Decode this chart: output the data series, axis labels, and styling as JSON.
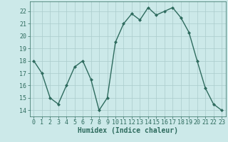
{
  "x": [
    0,
    1,
    2,
    3,
    4,
    5,
    6,
    7,
    8,
    9,
    10,
    11,
    12,
    13,
    14,
    15,
    16,
    17,
    18,
    19,
    20,
    21,
    22,
    23
  ],
  "y": [
    18.0,
    17.0,
    15.0,
    14.5,
    16.0,
    17.5,
    18.0,
    16.5,
    14.0,
    15.0,
    19.5,
    21.0,
    21.8,
    21.3,
    22.3,
    21.7,
    22.0,
    22.3,
    21.5,
    20.3,
    18.0,
    15.8,
    14.5,
    14.0
  ],
  "line_color": "#2e6b5e",
  "marker": "D",
  "markersize": 2.0,
  "linewidth": 1.0,
  "bg_color": "#cce9e9",
  "grid_color": "#aacccc",
  "xlabel": "Humidex (Indice chaleur)",
  "xlabel_fontsize": 7,
  "xlabel_weight": "bold",
  "ylabel_ticks": [
    14,
    15,
    16,
    17,
    18,
    19,
    20,
    21,
    22
  ],
  "xlim": [
    -0.5,
    23.5
  ],
  "ylim": [
    13.5,
    22.8
  ],
  "tick_fontsize": 6,
  "xticks": [
    0,
    1,
    2,
    3,
    4,
    5,
    6,
    7,
    8,
    9,
    10,
    11,
    12,
    13,
    14,
    15,
    16,
    17,
    18,
    19,
    20,
    21,
    22,
    23
  ]
}
